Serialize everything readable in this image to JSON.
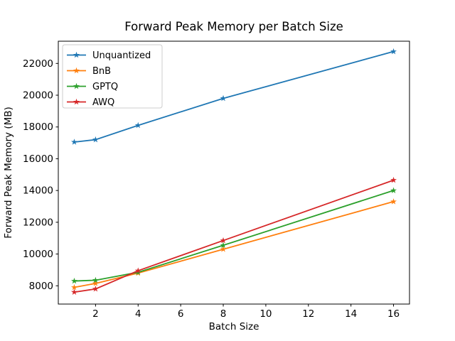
{
  "window": {
    "background": "#ffffff"
  },
  "chart_data": {
    "type": "line",
    "title": "Forward Peak Memory per Batch Size",
    "xlabel": "Batch Size",
    "ylabel": "Forward Peak Memory (MB)",
    "x": [
      1,
      2,
      4,
      8,
      16
    ],
    "series": [
      {
        "name": "Unquantized",
        "color": "#1f77b4",
        "values": [
          17050,
          17200,
          18100,
          19800,
          22750
        ]
      },
      {
        "name": "BnB",
        "color": "#ff7f0e",
        "values": [
          7900,
          8150,
          8800,
          10300,
          13300
        ]
      },
      {
        "name": "GPTQ",
        "color": "#2ca02c",
        "values": [
          8300,
          8350,
          8850,
          10550,
          14000
        ]
      },
      {
        "name": "AWQ",
        "color": "#d62728",
        "values": [
          7600,
          7800,
          8950,
          10850,
          14650
        ]
      }
    ],
    "marker": "star",
    "xticks": [
      2,
      4,
      6,
      8,
      10,
      12,
      14,
      16
    ],
    "yticks": [
      8000,
      10000,
      12000,
      14000,
      16000,
      18000,
      20000,
      22000
    ],
    "xlim": [
      0.25,
      16.75
    ],
    "ylim": [
      6850,
      23400
    ],
    "grid": false,
    "legend_position": "upper-left",
    "text_color": "#000000",
    "spine_color": "#000000",
    "legend_border_color": "#cccccc",
    "legend_background": "#ffffff"
  }
}
